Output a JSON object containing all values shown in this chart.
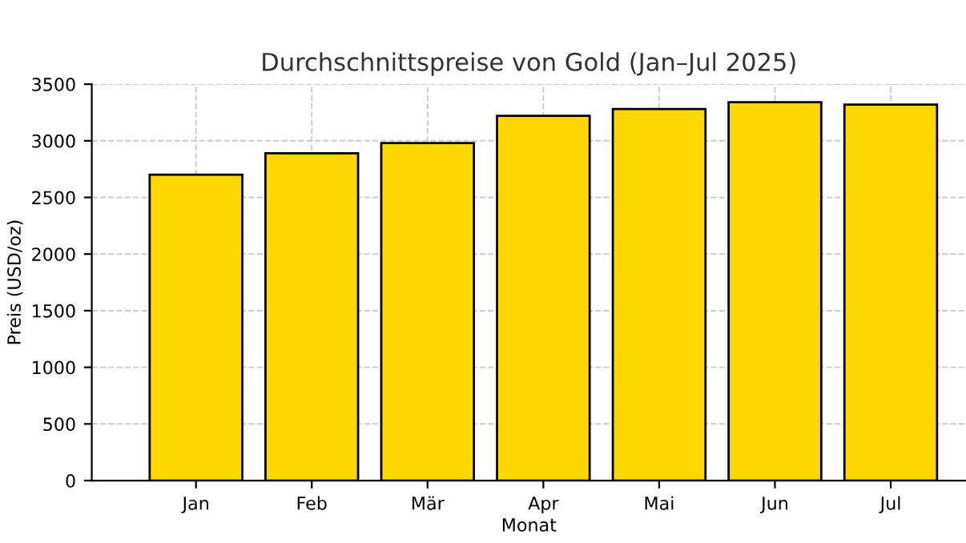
{
  "chart_data": {
    "type": "bar",
    "title": "Durchschnittspreise von Gold (Jan–Jul 2025)",
    "xlabel": "Monat",
    "ylabel": "Preis (USD/oz)",
    "categories": [
      "Jan",
      "Feb",
      "Mär",
      "Apr",
      "Mai",
      "Jun",
      "Jul"
    ],
    "values": [
      2700,
      2890,
      2980,
      3220,
      3280,
      3340,
      3320
    ],
    "color": "#ffd700",
    "ylim": [
      0,
      3500
    ],
    "yticks": [
      0,
      500,
      1000,
      1500,
      2000,
      2500,
      3000,
      3500
    ],
    "grid": true
  }
}
